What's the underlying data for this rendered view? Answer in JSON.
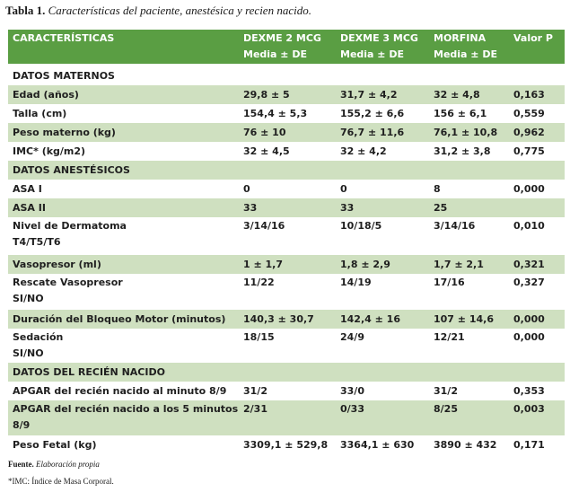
{
  "caption": {
    "label": "Tabla 1.",
    "text": "Características del paciente, anestésica y recien nacido."
  },
  "header": {
    "col0": "CARACTERÍSTICAS",
    "col1_line1": "DEXME 2 MCG",
    "col1_line2": "Media ± DE",
    "col2_line1": "DEXME 3 MCG",
    "col2_line2": "Media ± DE",
    "col3_line1": "MORFINA",
    "col3_line2": "Media ± DE",
    "col4": "Valor P"
  },
  "sections": {
    "maternos": "DATOS MATERNOS",
    "anestesicos": "DATOS ANESTÉSICOS",
    "recien_nacido": "DATOS DEL RECIÉN NACIDO"
  },
  "rows": [
    {
      "label": "Edad (años)",
      "label2": "",
      "d2": "29,8 ± 5",
      "d3": "31,7 ± 4,2",
      "morfina": "32 ± 4,8",
      "p": "0,163"
    },
    {
      "label": "Talla (cm)",
      "label2": "",
      "d2": "154,4 ± 5,3",
      "d3": "155,2 ± 6,6",
      "morfina": "156 ± 6,1",
      "p": "0,559"
    },
    {
      "label": "Peso materno (kg)",
      "label2": "",
      "d2": "76 ± 10",
      "d3": "76,7 ± 11,6",
      "morfina": "76,1 ± 10,8",
      "p": "0,962"
    },
    {
      "label": "IMC* (kg/m2)",
      "label2": "",
      "d2": "32 ± 4,5",
      "d3": "32 ± 4,2",
      "morfina": "31,2 ± 3,8",
      "p": "0,775"
    },
    {
      "label": "ASA I",
      "label2": "",
      "d2": "0",
      "d3": "0",
      "morfina": "8",
      "p": "0,000"
    },
    {
      "label": "ASA II",
      "label2": "",
      "d2": "33",
      "d3": "33",
      "morfina": "25",
      "p": ""
    },
    {
      "label": "Nivel de Dermatoma",
      "label2": "T4/T5/T6",
      "d2": "3/14/16",
      "d3": "10/18/5",
      "morfina": "3/14/16",
      "p": "0,010"
    },
    {
      "label": "Vasopresor (ml)",
      "label2": "",
      "d2": "1 ± 1,7",
      "d3": "1,8 ± 2,9",
      "morfina": "1,7 ± 2,1",
      "p": "0,321"
    },
    {
      "label": "Rescate Vasopresor",
      "label2": "SI/NO",
      "d2": "11/22",
      "d3": "14/19",
      "morfina": "17/16",
      "p": "0,327"
    },
    {
      "label": "Duración del Bloqueo Motor (minutos)",
      "label2": "",
      "d2": "140,3 ± 30,7",
      "d3": "142,4 ± 16",
      "morfina": "107 ± 14,6",
      "p": "0,000"
    },
    {
      "label": "Sedación",
      "label2": "SI/NO",
      "d2": "18/15",
      "d3": "24/9",
      "morfina": "12/21",
      "p": "0,000"
    },
    {
      "label": "APGAR del recién nacido al minuto 8/9",
      "label2": "",
      "d2": "31/2",
      "d3": "33/0",
      "morfina": "31/2",
      "p": "0,353"
    },
    {
      "label": "APGAR del recién nacido a los 5 minutos",
      "label2": "8/9",
      "d2": "2/31",
      "d3": "0/33",
      "morfina": "8/25",
      "p": "0,003"
    },
    {
      "label": "Peso Fetal (kg)",
      "label2": "",
      "d2": "3309,1 ± 529,8",
      "d3": "3364,1 ± 630",
      "morfina": "3890 ± 432",
      "p": "0,171"
    }
  ],
  "notes": {
    "fuente_label": "Fuente.",
    "fuente_text": "Elaboración propia",
    "imc_note": "*IMC: Índice de Masa Corporal."
  },
  "colors": {
    "header_bg": "#5a9e43",
    "stripe_bg": "#cfe0c0"
  }
}
